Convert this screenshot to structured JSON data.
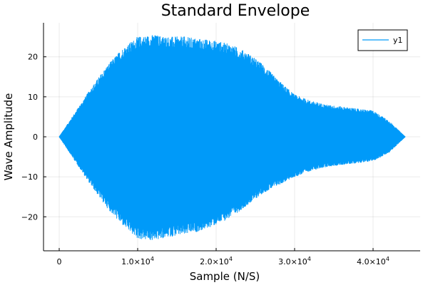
{
  "chart_data": {
    "type": "line",
    "title": "Standard Envelope",
    "xlabel": "Sample (N/S)",
    "ylabel": "Wave Amplitude",
    "xlim": [
      -2000,
      46000
    ],
    "ylim": [
      -28.5,
      28.5
    ],
    "x_ticks": [
      {
        "value": 0,
        "mantissa": "0",
        "exponent": ""
      },
      {
        "value": 10000,
        "mantissa": "1.0×10",
        "exponent": "4"
      },
      {
        "value": 20000,
        "mantissa": "2.0×10",
        "exponent": "4"
      },
      {
        "value": 30000,
        "mantissa": "3.0×10",
        "exponent": "4"
      },
      {
        "value": 40000,
        "mantissa": "4.0×10",
        "exponent": "4"
      }
    ],
    "y_ticks": [
      -20,
      -10,
      0,
      10,
      20
    ],
    "grid": true,
    "legend_position": "top-right",
    "color": "#009af9",
    "series": [
      {
        "name": "y1",
        "envelope_x": [
          0,
          2000,
          4000,
          6000,
          8000,
          10000,
          12000,
          14000,
          16000,
          18000,
          20000,
          22000,
          24000,
          26000,
          28000,
          30000,
          32000,
          34000,
          36000,
          38000,
          40000,
          42000,
          44100
        ],
        "envelope_upper": [
          0,
          6,
          12,
          17.5,
          22,
          25,
          25.5,
          25,
          25,
          24.5,
          24,
          23,
          21,
          18,
          14,
          10.5,
          9,
          8,
          7.5,
          7,
          6.5,
          4,
          0
        ],
        "envelope_lower": [
          0,
          -6,
          -12,
          -17.5,
          -22,
          -25.5,
          -26,
          -25,
          -24.5,
          -23.5,
          -22,
          -20,
          -17,
          -14,
          -12,
          -10,
          -8.5,
          -7.5,
          -7,
          -6.5,
          -6,
          -4,
          0
        ]
      }
    ]
  }
}
